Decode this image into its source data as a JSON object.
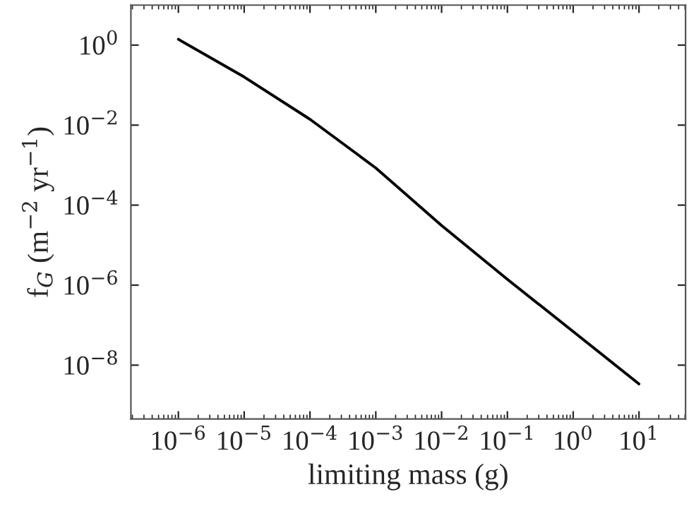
{
  "chart_data": {
    "type": "line",
    "xlabel": "limiting mass (g)",
    "ylabel": "f$_{G}$ (m$^{−2}$ yr$^{−1}$)",
    "log": "xy",
    "grid": false,
    "marker": "none",
    "line_style": "solid",
    "series": [
      {
        "color": "#000000",
        "x": [
          1e-06,
          1e-05,
          0.0001,
          0.001,
          0.01,
          0.1,
          1,
          10
        ],
        "values": [
          1.4,
          0.16,
          0.014,
          0.00085,
          3.1e-05,
          1.4e-06,
          6.9e-08,
          3.4e-09
        ]
      }
    ],
    "xlim": [
      1.9e-07,
      51
    ],
    "ylim": [
      4.5e-10,
      10
    ],
    "xticks": [
      {
        "value": 1e-06,
        "label": "10$^{−6}$"
      },
      {
        "value": 1e-05,
        "label": "10$^{−5}$"
      },
      {
        "value": 0.0001,
        "label": "10$^{−4}$"
      },
      {
        "value": 0.001,
        "label": "10$^{−3}$"
      },
      {
        "value": 0.01,
        "label": "10$^{−2}$"
      },
      {
        "value": 0.1,
        "label": "10$^{−1}$"
      },
      {
        "value": 1,
        "label": "10$^{0}$"
      },
      {
        "value": 10,
        "label": "10$^{1}$"
      }
    ],
    "yticks": [
      {
        "value": 1,
        "label": "10$^{0}$"
      },
      {
        "value": 0.01,
        "label": "10$^{−2}$"
      },
      {
        "value": 0.0001,
        "label": "10$^{−4}$"
      },
      {
        "value": 1e-06,
        "label": "10$^{−6}$"
      },
      {
        "value": 1e-08,
        "label": "10$^{−8}$"
      }
    ]
  }
}
